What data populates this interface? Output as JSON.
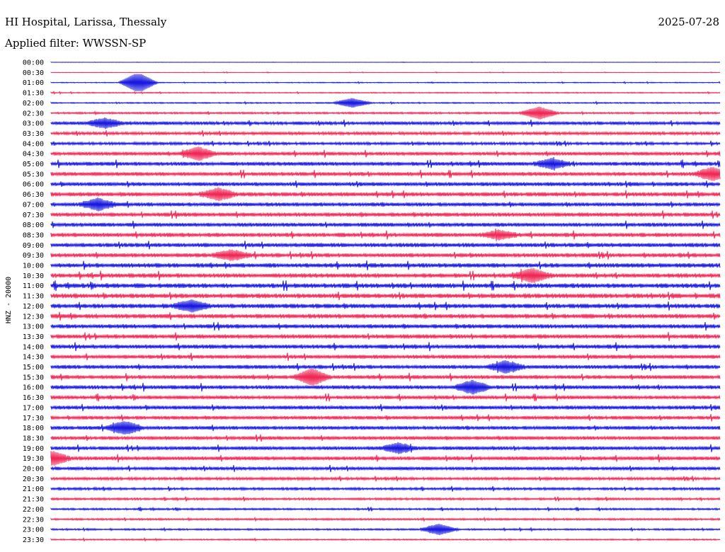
{
  "header": {
    "station": "HI Hospital, Larissa, Thessaly",
    "date": "2025-07-28",
    "filter": "Applied filter: WWSSN-SP"
  },
  "colors": {
    "line_a": "#0000dd",
    "line_b": "#ee1144",
    "text": "#000000",
    "background": "#ffffff"
  },
  "chart_data": {
    "type": "line",
    "title": "HI Hospital, Larissa, Thessaly",
    "ylabel": "HNZ - 20000",
    "rows": [
      "00:00",
      "00:30",
      "01:00",
      "01:30",
      "02:00",
      "02:30",
      "03:00",
      "03:30",
      "04:00",
      "04:30",
      "05:00",
      "05:30",
      "06:00",
      "06:30",
      "07:00",
      "07:30",
      "08:00",
      "08:30",
      "09:00",
      "09:30",
      "10:00",
      "10:30",
      "11:00",
      "11:30",
      "12:00",
      "12:30",
      "13:00",
      "13:30",
      "14:00",
      "14:30",
      "15:00",
      "15:30",
      "16:00",
      "16:30",
      "17:00",
      "17:30",
      "18:00",
      "18:30",
      "19:00",
      "19:30",
      "20:00",
      "20:30",
      "21:00",
      "21:30",
      "22:00",
      "22:30",
      "23:00",
      "23:30"
    ],
    "noise_level": [
      0.2,
      0.4,
      0.6,
      0.8,
      0.9,
      1.4,
      2.4,
      2.2,
      2.0,
      2.6,
      2.8,
      2.8,
      2.8,
      3.0,
      2.8,
      3.0,
      2.8,
      3.0,
      3.0,
      3.0,
      3.2,
      3.2,
      3.4,
      3.4,
      3.2,
      3.2,
      3.0,
      3.0,
      3.0,
      2.8,
      2.8,
      2.8,
      2.8,
      2.6,
      2.8,
      2.6,
      2.6,
      2.6,
      2.6,
      2.8,
      2.4,
      2.0,
      1.8,
      1.6,
      1.4,
      1.4,
      1.2,
      1.0
    ],
    "events": [
      {
        "row": 2,
        "pos": 0.13,
        "amp": 14
      },
      {
        "row": 4,
        "pos": 0.45,
        "amp": 6
      },
      {
        "row": 5,
        "pos": 0.73,
        "amp": 8
      },
      {
        "row": 6,
        "pos": 0.08,
        "amp": 6
      },
      {
        "row": 9,
        "pos": 0.22,
        "amp": 8
      },
      {
        "row": 10,
        "pos": 0.75,
        "amp": 6
      },
      {
        "row": 11,
        "pos": 0.99,
        "amp": 8
      },
      {
        "row": 13,
        "pos": 0.25,
        "amp": 7
      },
      {
        "row": 14,
        "pos": 0.07,
        "amp": 7
      },
      {
        "row": 17,
        "pos": 0.67,
        "amp": 5
      },
      {
        "row": 19,
        "pos": 0.27,
        "amp": 6
      },
      {
        "row": 21,
        "pos": 0.72,
        "amp": 8
      },
      {
        "row": 24,
        "pos": 0.21,
        "amp": 7
      },
      {
        "row": 30,
        "pos": 0.68,
        "amp": 7
      },
      {
        "row": 31,
        "pos": 0.39,
        "amp": 10
      },
      {
        "row": 32,
        "pos": 0.63,
        "amp": 8
      },
      {
        "row": 36,
        "pos": 0.11,
        "amp": 8
      },
      {
        "row": 38,
        "pos": 0.52,
        "amp": 6
      },
      {
        "row": 39,
        "pos": 0.0,
        "amp": 9
      },
      {
        "row": 46,
        "pos": 0.58,
        "amp": 7
      }
    ]
  }
}
